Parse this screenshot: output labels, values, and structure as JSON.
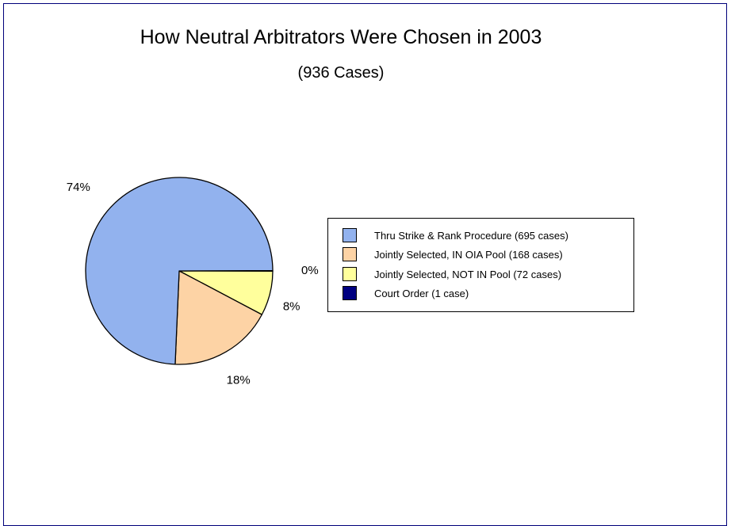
{
  "chart_data": {
    "type": "pie",
    "title": "How Neutral Arbitrators Were Chosen in 2003",
    "subtitle": "(936 Cases)",
    "legend_placement": "right",
    "slices": [
      {
        "label": "Thru Strike & Rank Procedure (695 cases)",
        "value": 695,
        "percent_label": "74%",
        "color": "#92b2ee"
      },
      {
        "label": "Jointly Selected, IN OIA Pool (168 cases)",
        "value": 168,
        "percent_label": "18%",
        "color": "#fdd3a5"
      },
      {
        "label": "Jointly Selected, NOT IN Pool (72 cases)",
        "value": 72,
        "percent_label": "8%",
        "color": "#ffff9c"
      },
      {
        "label": "Court Order (1 case)",
        "value": 1,
        "percent_label": "0%",
        "color": "#000080"
      }
    ]
  }
}
